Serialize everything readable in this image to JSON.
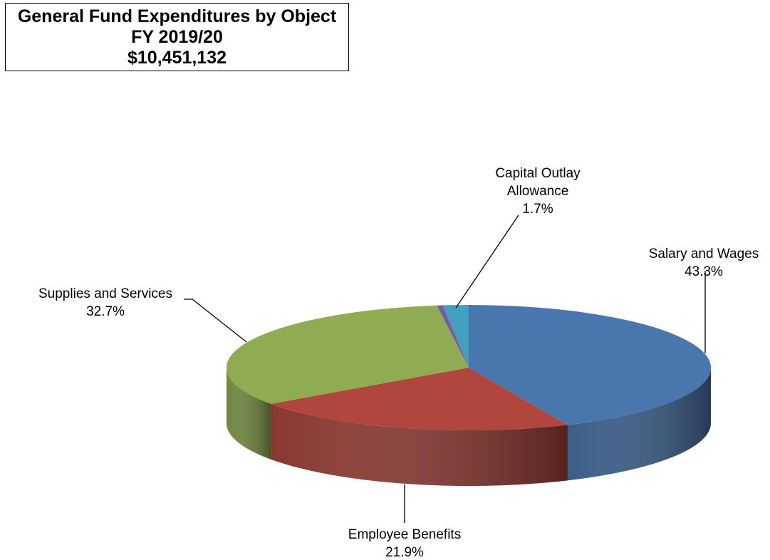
{
  "header": {
    "title": "General Fund Expenditures by Object",
    "fiscal_year": "FY 2019/20",
    "total": "$10,451,132"
  },
  "chart_data": {
    "type": "pie",
    "title": "General Fund Expenditures by Object",
    "subtitle": "FY 2019/20",
    "total_label": "$10,451,132",
    "style": "3d-tilted",
    "slices": [
      {
        "label": "Salary and Wages",
        "percent_label": "43.3%",
        "value": 43.3,
        "color": "#4A76AE"
      },
      {
        "label": "Employee Benefits",
        "percent_label": "21.9%",
        "value": 21.9,
        "color": "#B1463F"
      },
      {
        "label": "Supplies and Services",
        "percent_label": "32.7%",
        "value": 32.7,
        "color": "#8FAC52"
      },
      {
        "label": "",
        "percent_label": "",
        "value": 0.4,
        "color": "#7A5C9E"
      },
      {
        "label": "Capital Outlay Allowance",
        "percent_label": "1.7%",
        "value": 1.7,
        "color": "#42A0BE"
      }
    ]
  }
}
